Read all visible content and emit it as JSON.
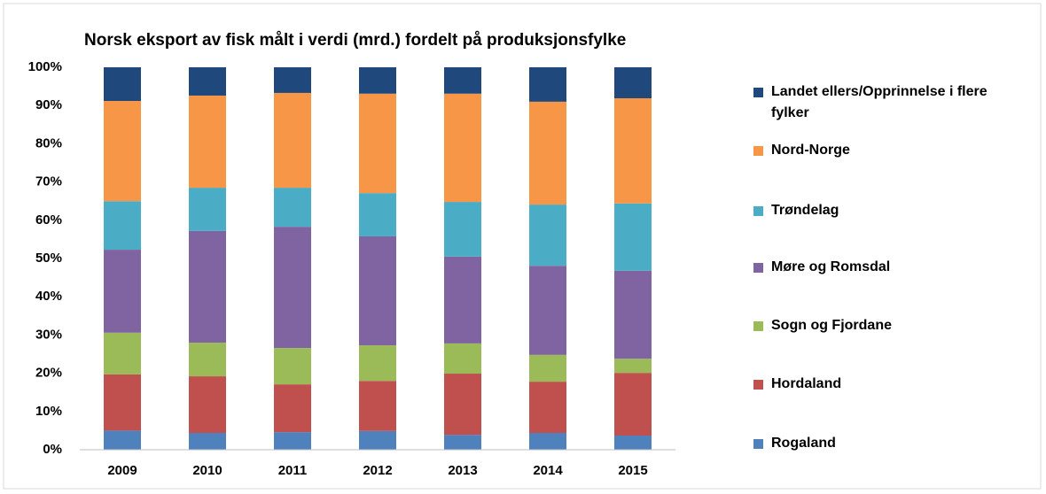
{
  "chart_data": {
    "type": "stacked_bar",
    "title": "Norsk eksport av fisk målt i verdi (mrd.) fordelt på produksjonsfylke",
    "categories": [
      "2009",
      "2010",
      "2011",
      "2012",
      "2013",
      "2014",
      "2015"
    ],
    "series": [
      {
        "name": "Rogaland",
        "color": "#4f81bd",
        "values": [
          5,
          4.4,
          4.6,
          4.9,
          3.9,
          4.4,
          3.7
        ]
      },
      {
        "name": "Hordaland",
        "color": "#c0504d",
        "values": [
          14.7,
          14.8,
          12.5,
          13.1,
          16,
          13.4,
          16.4
        ]
      },
      {
        "name": "Sogn og Fjordane",
        "color": "#9bbb59",
        "values": [
          10.9,
          8.8,
          9.5,
          9.3,
          7.9,
          7,
          3.7
        ]
      },
      {
        "name": "Møre og Romsdal",
        "color": "#8064a2",
        "values": [
          21.7,
          29.2,
          31.7,
          28.5,
          22.7,
          23.3,
          23
        ]
      },
      {
        "name": "Trøndelag",
        "color": "#4bacc6",
        "values": [
          12.7,
          11.3,
          10.2,
          11.3,
          14.3,
          16,
          17.6
        ]
      },
      {
        "name": "Nord-Norge",
        "color": "#f79646",
        "values": [
          26.2,
          24.1,
          24.8,
          26,
          28.3,
          26.9,
          27.5
        ]
      },
      {
        "name": "Landet ellers/Opprinnelse i flere fylker",
        "color": "#1f497d",
        "values": [
          8.8,
          7.4,
          6.7,
          6.9,
          6.9,
          9,
          8.1
        ]
      }
    ],
    "ylim": [
      0,
      100
    ],
    "yticks": [
      {
        "value": 0,
        "label": "0%"
      },
      {
        "value": 10,
        "label": "10%"
      },
      {
        "value": 20,
        "label": "20%"
      },
      {
        "value": 30,
        "label": "30%"
      },
      {
        "value": 40,
        "label": "40%"
      },
      {
        "value": 50,
        "label": "50%"
      },
      {
        "value": 60,
        "label": "60%"
      },
      {
        "value": 70,
        "label": "70%"
      },
      {
        "value": 80,
        "label": "80%"
      },
      {
        "value": 90,
        "label": "90%"
      },
      {
        "value": 100,
        "label": "100%"
      }
    ],
    "grid": false,
    "legend": "right"
  }
}
